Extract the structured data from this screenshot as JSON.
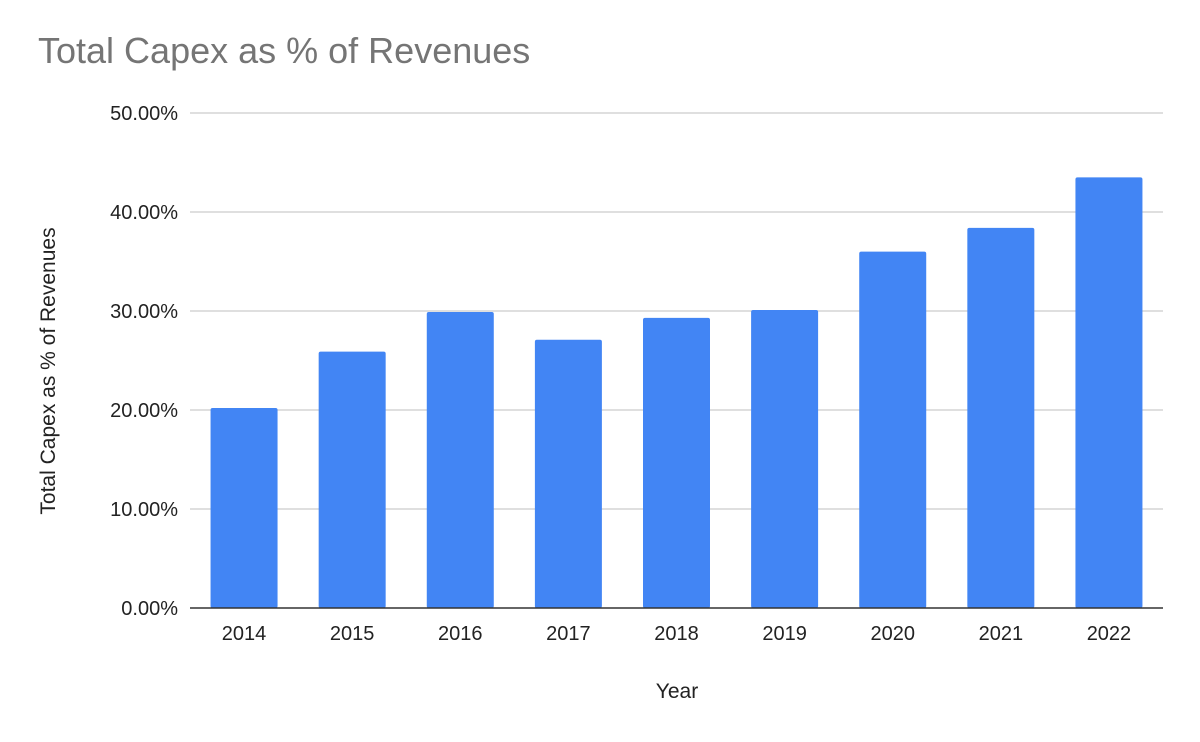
{
  "chart_data": {
    "type": "bar",
    "title": "Total Capex as % of Revenues",
    "xlabel": "Year",
    "ylabel": "Total Capex as % of Revenues",
    "categories": [
      "2014",
      "2015",
      "2016",
      "2017",
      "2018",
      "2019",
      "2020",
      "2021",
      "2022"
    ],
    "series": [
      {
        "values": [
          20.2,
          25.9,
          29.9,
          27.1,
          29.3,
          30.1,
          36.0,
          38.4,
          43.5
        ]
      }
    ],
    "ylim": [
      0,
      50
    ],
    "yticks": [
      "0.00%",
      "10.00%",
      "20.00%",
      "30.00%",
      "40.00%",
      "50.00%"
    ],
    "grid": true,
    "legend": "none",
    "colors": {
      "bar": "#4285f4",
      "grid": "#cccccc",
      "axis": "#333333",
      "title": "#757575",
      "text": "#222222"
    }
  }
}
